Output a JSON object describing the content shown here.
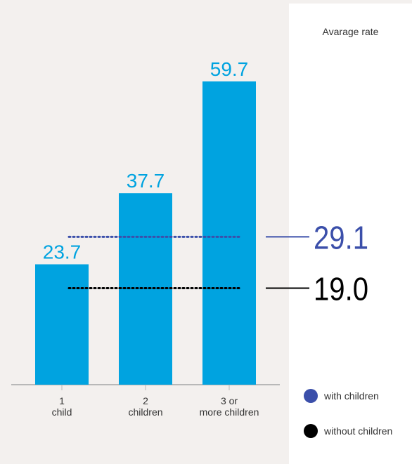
{
  "chart_data": {
    "type": "bar",
    "categories": [
      [
        "1",
        "child"
      ],
      [
        "2",
        "children"
      ],
      [
        "3 or",
        "more children"
      ]
    ],
    "series": [
      {
        "name": "with children",
        "values": [
          23.7,
          37.7,
          59.7
        ]
      }
    ],
    "value_labels": [
      "23.7",
      "37.7",
      "59.7"
    ],
    "reference_lines": [
      {
        "label": "29.1",
        "value": 29.1,
        "series": "with children",
        "style": "dotted"
      },
      {
        "label": "19.0",
        "value": 19.0,
        "series": "without children",
        "style": "dotted"
      }
    ],
    "ylim": [
      0,
      70
    ],
    "grid": false,
    "legend_position": "bottom-right",
    "legend": [
      {
        "name": "with children",
        "color": "#3b4faa"
      },
      {
        "name": "without children",
        "color": "#000000"
      }
    ],
    "panel_title": "Avarage rate"
  },
  "colors": {
    "bar": "#00a3e0",
    "value_label": "#00a3e0",
    "with_children": "#3b4faa",
    "without_children": "#000000",
    "baseline": "#b8b8b8",
    "panel_bg": "#ffffff",
    "page_bg": "#f3f0ee"
  }
}
